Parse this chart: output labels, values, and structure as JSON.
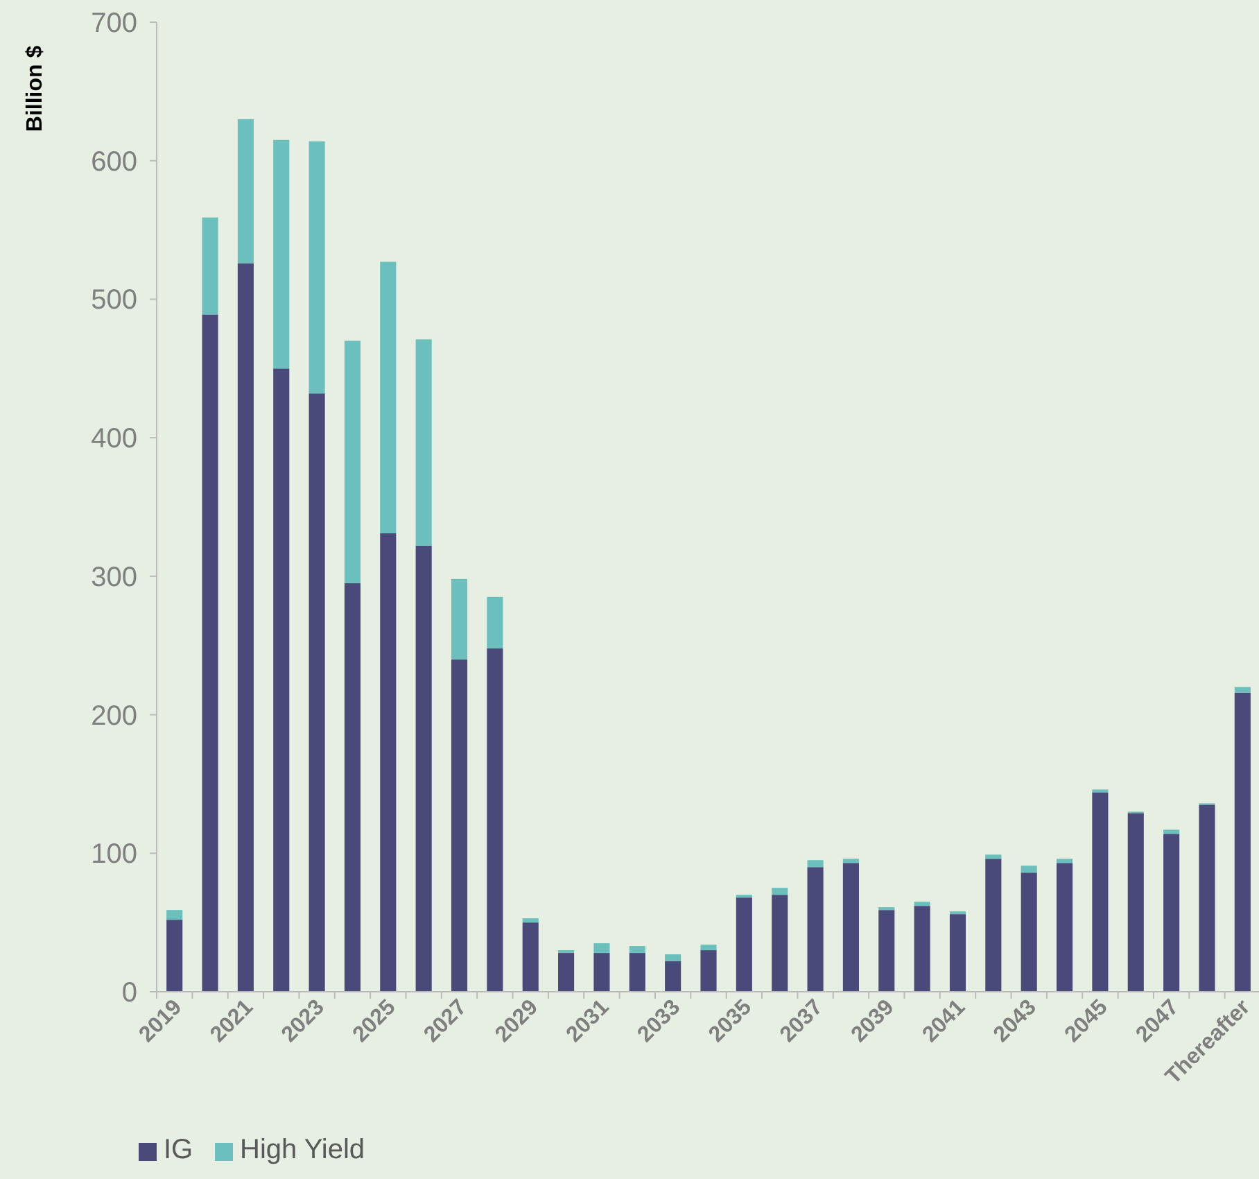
{
  "chart_data": {
    "type": "bar",
    "stacked": true,
    "ylabel": "Billion $",
    "categories": [
      "2019",
      null,
      "2021",
      null,
      "2023",
      null,
      "2025",
      null,
      "2027",
      null,
      "2029",
      null,
      "2031",
      null,
      "2033",
      null,
      "2035",
      null,
      "2037",
      null,
      "2039",
      null,
      "2041",
      null,
      "2043",
      null,
      "2045",
      null,
      "2047",
      null,
      "Thereafter"
    ],
    "series": [
      {
        "name": "IG",
        "color": "#4a4a7a",
        "values": [
          52,
          489,
          526,
          450,
          432,
          295,
          331,
          322,
          240,
          248,
          50,
          28,
          28,
          28,
          22,
          30,
          68,
          70,
          90,
          93,
          59,
          62,
          56,
          96,
          86,
          93,
          144,
          129,
          114,
          135,
          216
        ]
      },
      {
        "name": "High Yield",
        "color": "#6bbfbc",
        "values": [
          7,
          70,
          104,
          165,
          182,
          175,
          196,
          149,
          58,
          37,
          3,
          2,
          7,
          5,
          5,
          4,
          2,
          5,
          5,
          3,
          2,
          3,
          2,
          3,
          5,
          3,
          2,
          1,
          3,
          1,
          4
        ]
      }
    ],
    "ylim": [
      0,
      700
    ],
    "yticks": [
      0,
      100,
      200,
      300,
      400,
      500,
      600,
      700
    ],
    "grid": false,
    "legend": "bottom left"
  }
}
